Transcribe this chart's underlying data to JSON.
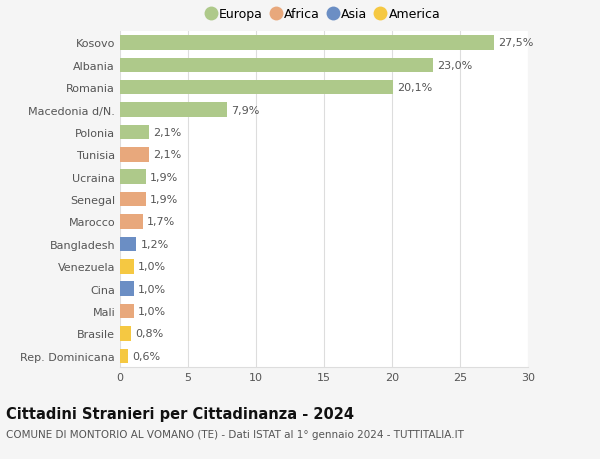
{
  "countries": [
    "Kosovo",
    "Albania",
    "Romania",
    "Macedonia d/N.",
    "Polonia",
    "Tunisia",
    "Ucraina",
    "Senegal",
    "Marocco",
    "Bangladesh",
    "Venezuela",
    "Cina",
    "Mali",
    "Brasile",
    "Rep. Dominicana"
  ],
  "values": [
    27.5,
    23.0,
    20.1,
    7.9,
    2.1,
    2.1,
    1.9,
    1.9,
    1.7,
    1.2,
    1.0,
    1.0,
    1.0,
    0.8,
    0.6
  ],
  "labels": [
    "27,5%",
    "23,0%",
    "20,1%",
    "7,9%",
    "2,1%",
    "2,1%",
    "1,9%",
    "1,9%",
    "1,7%",
    "1,2%",
    "1,0%",
    "1,0%",
    "1,0%",
    "0,8%",
    "0,6%"
  ],
  "continents": [
    "Europa",
    "Europa",
    "Europa",
    "Europa",
    "Europa",
    "Africa",
    "Europa",
    "Africa",
    "Africa",
    "Asia",
    "America",
    "Asia",
    "Africa",
    "America",
    "America"
  ],
  "continent_colors": {
    "Europa": "#aec98a",
    "Africa": "#e8a87c",
    "Asia": "#6b8ec4",
    "America": "#f5c842"
  },
  "legend_items": [
    "Europa",
    "Africa",
    "Asia",
    "America"
  ],
  "legend_colors": [
    "#aec98a",
    "#e8a87c",
    "#6b8ec4",
    "#f5c842"
  ],
  "title": "Cittadini Stranieri per Cittadinanza - 2024",
  "subtitle": "COMUNE DI MONTORIO AL VOMANO (TE) - Dati ISTAT al 1° gennaio 2024 - TUTTITALIA.IT",
  "xlim": [
    0,
    30
  ],
  "xticks": [
    0,
    5,
    10,
    15,
    20,
    25,
    30
  ],
  "background_color": "#f5f5f5",
  "plot_bg_color": "#ffffff",
  "grid_color": "#dddddd",
  "bar_height": 0.65,
  "label_fontsize": 8,
  "tick_fontsize": 8,
  "title_fontsize": 10.5,
  "subtitle_fontsize": 7.5,
  "legend_fontsize": 9
}
